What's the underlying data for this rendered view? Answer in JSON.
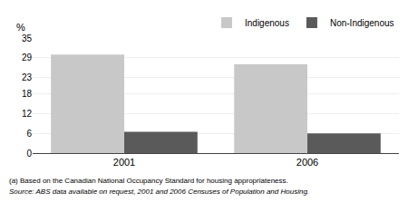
{
  "chart_data": {
    "type": "bar",
    "categories": [
      "2001",
      "2006"
    ],
    "series": [
      {
        "name": "Indigenous",
        "color": "#c8c8c8",
        "values": [
          30.0,
          27.0
        ]
      },
      {
        "name": "Non-Indigenous",
        "color": "#5a5a5a",
        "values": [
          6.5,
          6.0
        ]
      }
    ],
    "ylabel": "%",
    "ylim": [
      0,
      35
    ],
    "yticks": [
      0,
      6,
      12,
      18,
      23,
      29,
      35
    ],
    "grid": true,
    "legend": "upper right",
    "annotations": [
      "(a) Based on the Canadian National Occupancy Standard for housing appropriateness.",
      "Source: ABS data available on request, 2001 and 2006 Censuses of Population and Housing."
    ]
  }
}
